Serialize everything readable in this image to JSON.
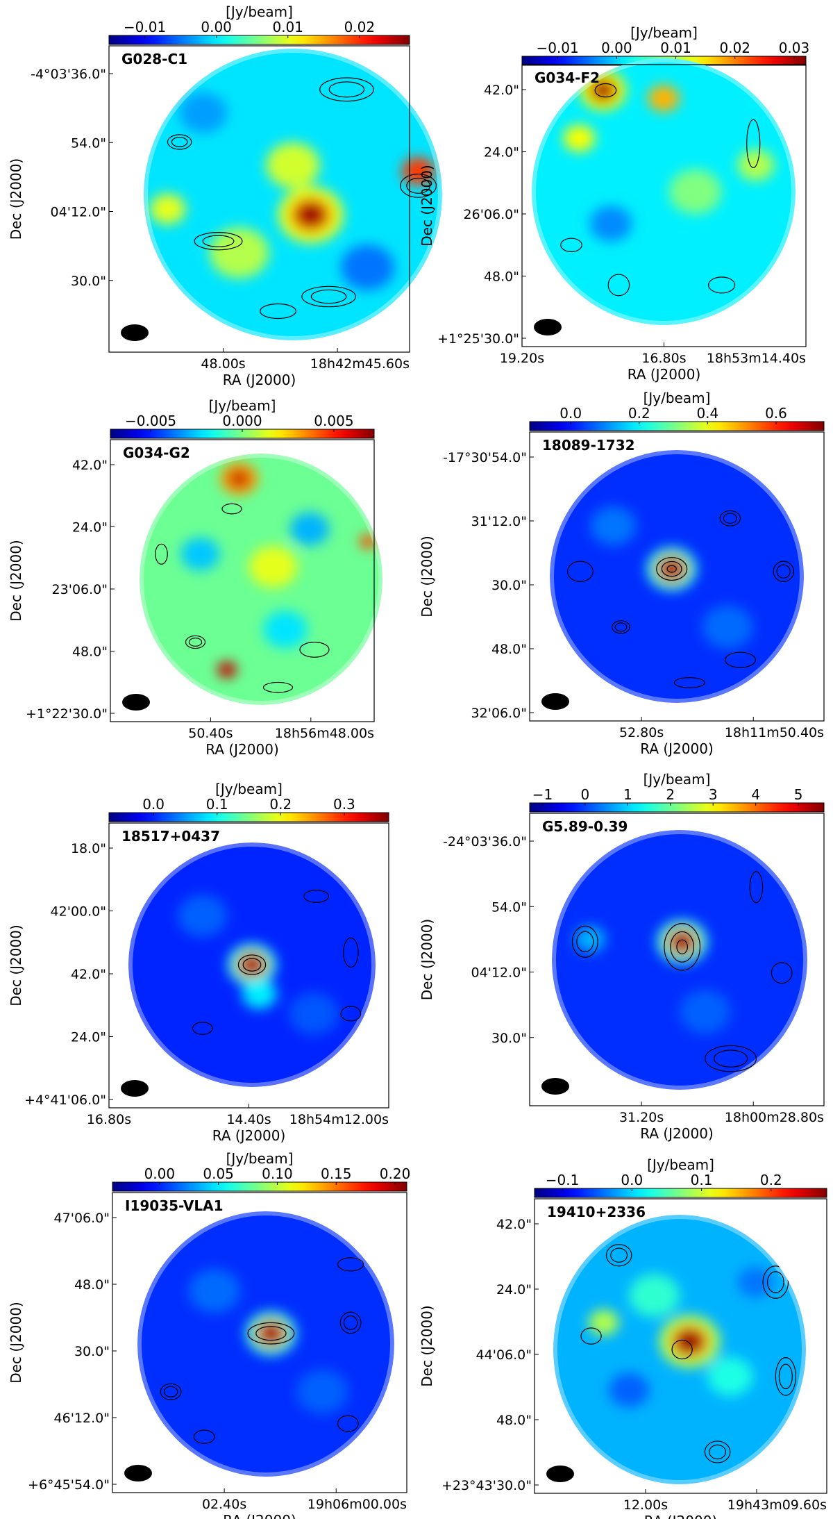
{
  "figure": {
    "colorbar_label": "[Jy/beam]",
    "xlabel": "RA (J2000)",
    "ylabel": "Dec (J2000)",
    "colormap": "jet"
  },
  "chart_data": [
    {
      "type": "heatmap",
      "title": "G028-C1",
      "colorbar": {
        "ticks": [
          "−0.01",
          "0.00",
          "0.01",
          "0.02"
        ],
        "range": [
          -0.015,
          0.027
        ]
      },
      "xticks": [
        "48.00s",
        "18h42m45.60s"
      ],
      "yticks": [
        "-4°03'36.0\"",
        "54.0\"",
        "04'12.0\"",
        "30.0\""
      ],
      "background_level": 0.35,
      "peaks": [
        {
          "u": 0.56,
          "v": 0.57,
          "r": 0.05,
          "level": 0.97,
          "role": "source"
        },
        {
          "u": 0.92,
          "v": 0.42,
          "r": 0.055,
          "level": 0.82
        },
        {
          "u": 0.5,
          "v": 0.4,
          "r": 0.09,
          "level": 0.58
        },
        {
          "u": 0.32,
          "v": 0.7,
          "r": 0.1,
          "level": 0.55
        },
        {
          "u": 0.2,
          "v": 0.22,
          "r": 0.08,
          "level": 0.28
        },
        {
          "u": 0.75,
          "v": 0.75,
          "r": 0.09,
          "level": 0.24
        },
        {
          "u": 0.08,
          "v": 0.55,
          "r": 0.06,
          "level": 0.6
        }
      ],
      "contours": [
        {
          "u": 0.68,
          "v": 0.14,
          "rx": 0.09,
          "ry": 0.04,
          "rings": 2
        },
        {
          "u": 0.12,
          "v": 0.32,
          "rx": 0.04,
          "ry": 0.025,
          "rings": 2
        },
        {
          "u": 0.92,
          "v": 0.47,
          "rx": 0.06,
          "ry": 0.04,
          "rings": 2
        },
        {
          "u": 0.25,
          "v": 0.66,
          "rx": 0.08,
          "ry": 0.03,
          "rings": 2
        },
        {
          "u": 0.62,
          "v": 0.85,
          "rx": 0.09,
          "ry": 0.035,
          "rings": 2
        },
        {
          "u": 0.45,
          "v": 0.9,
          "rx": 0.06,
          "ry": 0.025,
          "rings": 1
        }
      ]
    },
    {
      "type": "heatmap",
      "title": "G034-F2",
      "colorbar": {
        "ticks": [
          "−0.01",
          "0.00",
          "0.01",
          "0.02",
          "0.03"
        ],
        "range": [
          -0.016,
          0.032
        ]
      },
      "xticks": [
        "19.20s",
        "16.80s",
        "18h53m14.40s"
      ],
      "yticks": [
        "42.0\"",
        "24.0\"",
        "26'06.0\"",
        "48.0\"",
        "+1°25'30.0\""
      ],
      "background_level": 0.36,
      "peaks": [
        {
          "u": 0.27,
          "v": 0.12,
          "r": 0.04,
          "level": 0.98,
          "role": "source"
        },
        {
          "u": 0.5,
          "v": 0.15,
          "r": 0.06,
          "level": 0.7
        },
        {
          "u": 0.18,
          "v": 0.3,
          "r": 0.06,
          "level": 0.62
        },
        {
          "u": 0.62,
          "v": 0.5,
          "r": 0.1,
          "level": 0.5
        },
        {
          "u": 0.3,
          "v": 0.62,
          "r": 0.08,
          "level": 0.26
        },
        {
          "u": 0.85,
          "v": 0.4,
          "r": 0.07,
          "level": 0.55
        }
      ],
      "contours": [
        {
          "u": 0.28,
          "v": 0.12,
          "rx": 0.04,
          "ry": 0.025,
          "rings": 1
        },
        {
          "u": 0.84,
          "v": 0.32,
          "rx": 0.025,
          "ry": 0.09,
          "rings": 1
        },
        {
          "u": 0.33,
          "v": 0.85,
          "rx": 0.04,
          "ry": 0.04,
          "rings": 1
        },
        {
          "u": 0.72,
          "v": 0.85,
          "rx": 0.05,
          "ry": 0.03,
          "rings": 1
        },
        {
          "u": 0.15,
          "v": 0.7,
          "rx": 0.04,
          "ry": 0.025,
          "rings": 1
        }
      ]
    },
    {
      "type": "heatmap",
      "title": "G034-G2",
      "colorbar": {
        "ticks": [
          "−0.005",
          "0.000",
          "0.005"
        ],
        "range": [
          -0.0072,
          0.0072
        ]
      },
      "xticks": [
        "50.40s",
        "18h56m48.00s"
      ],
      "yticks": [
        "42.0\"",
        "24.0\"",
        "23'06.0\"",
        "48.0\"",
        "+1°22'30.0\""
      ],
      "background_level": 0.48,
      "peaks": [
        {
          "u": 0.41,
          "v": 0.1,
          "r": 0.035,
          "level": 0.96,
          "role": "source"
        },
        {
          "u": 0.36,
          "v": 0.86,
          "r": 0.04,
          "level": 0.93
        },
        {
          "u": 0.94,
          "v": 0.35,
          "r": 0.035,
          "level": 0.8
        },
        {
          "u": 0.55,
          "v": 0.45,
          "r": 0.1,
          "level": 0.6
        },
        {
          "u": 0.25,
          "v": 0.4,
          "r": 0.08,
          "level": 0.32
        },
        {
          "u": 0.7,
          "v": 0.3,
          "r": 0.08,
          "level": 0.3
        },
        {
          "u": 0.6,
          "v": 0.7,
          "r": 0.09,
          "level": 0.35
        }
      ],
      "contours": [
        {
          "u": 0.38,
          "v": 0.22,
          "rx": 0.04,
          "ry": 0.02,
          "rings": 1
        },
        {
          "u": 0.23,
          "v": 0.75,
          "rx": 0.04,
          "ry": 0.025,
          "rings": 2
        },
        {
          "u": 0.72,
          "v": 0.78,
          "rx": 0.06,
          "ry": 0.03,
          "rings": 1
        },
        {
          "u": 0.09,
          "v": 0.4,
          "rx": 0.025,
          "ry": 0.04,
          "rings": 1
        },
        {
          "u": 0.57,
          "v": 0.93,
          "rx": 0.06,
          "ry": 0.02,
          "rings": 1
        }
      ]
    },
    {
      "type": "heatmap",
      "title": "18089-1732",
      "colorbar": {
        "ticks": [
          "0.0",
          "0.2",
          "0.4",
          "0.6"
        ],
        "range": [
          -0.12,
          0.74
        ]
      },
      "xticks": [
        "52.80s",
        "18h11m50.40s"
      ],
      "yticks": [
        "-17°30'54.0\"",
        "31'12.0\"",
        "30.0\"",
        "48.0\"",
        "32'06.0\""
      ],
      "background_level": 0.17,
      "peaks": [
        {
          "u": 0.48,
          "v": 0.47,
          "r": 0.045,
          "level": 0.98,
          "role": "source"
        },
        {
          "u": 0.25,
          "v": 0.3,
          "r": 0.09,
          "level": 0.24
        },
        {
          "u": 0.7,
          "v": 0.7,
          "r": 0.1,
          "level": 0.23
        }
      ],
      "contours": [
        {
          "u": 0.48,
          "v": 0.47,
          "rx": 0.06,
          "ry": 0.045,
          "rings": 3
        },
        {
          "u": 0.71,
          "v": 0.27,
          "rx": 0.04,
          "ry": 0.03,
          "rings": 2
        },
        {
          "u": 0.92,
          "v": 0.48,
          "rx": 0.04,
          "ry": 0.04,
          "rings": 2
        },
        {
          "u": 0.12,
          "v": 0.48,
          "rx": 0.05,
          "ry": 0.04,
          "rings": 1
        },
        {
          "u": 0.28,
          "v": 0.7,
          "rx": 0.035,
          "ry": 0.025,
          "rings": 2
        },
        {
          "u": 0.75,
          "v": 0.83,
          "rx": 0.06,
          "ry": 0.03,
          "rings": 1
        },
        {
          "u": 0.55,
          "v": 0.92,
          "rx": 0.06,
          "ry": 0.02,
          "rings": 1
        }
      ]
    },
    {
      "type": "heatmap",
      "title": "18517+0437",
      "colorbar": {
        "ticks": [
          "0.0",
          "0.1",
          "0.2",
          "0.3"
        ],
        "range": [
          -0.07,
          0.37
        ]
      },
      "xticks": [
        "16.80s",
        "14.40s",
        "18h54m12.00s"
      ],
      "yticks": [
        "18.0\"",
        "42'00.0\"",
        "42.0\"",
        "24.0\"",
        "+4°41'06.0\""
      ],
      "background_level": 0.16,
      "peaks": [
        {
          "u": 0.5,
          "v": 0.5,
          "r": 0.045,
          "level": 0.98,
          "role": "source"
        },
        {
          "u": 0.53,
          "v": 0.62,
          "r": 0.07,
          "level": 0.36
        },
        {
          "u": 0.3,
          "v": 0.3,
          "r": 0.1,
          "level": 0.22
        },
        {
          "u": 0.75,
          "v": 0.7,
          "r": 0.1,
          "level": 0.21
        }
      ],
      "contours": [
        {
          "u": 0.5,
          "v": 0.5,
          "rx": 0.055,
          "ry": 0.04,
          "rings": 2
        },
        {
          "u": 0.76,
          "v": 0.22,
          "rx": 0.05,
          "ry": 0.025,
          "rings": 1
        },
        {
          "u": 0.9,
          "v": 0.45,
          "rx": 0.03,
          "ry": 0.06,
          "rings": 1
        },
        {
          "u": 0.3,
          "v": 0.76,
          "rx": 0.04,
          "ry": 0.025,
          "rings": 1
        },
        {
          "u": 0.9,
          "v": 0.7,
          "rx": 0.04,
          "ry": 0.03,
          "rings": 1
        }
      ]
    },
    {
      "type": "heatmap",
      "title": "G5.89-0.39",
      "colorbar": {
        "ticks": [
          "−1",
          "0",
          "1",
          "2",
          "3",
          "4",
          "5"
        ],
        "range": [
          -1.3,
          5.6
        ]
      },
      "xticks": [
        "31.20s",
        "18h00m28.80s"
      ],
      "yticks": [
        "-24°03'36.0\"",
        "54.0\"",
        "04'12.0\"",
        "30.0\""
      ],
      "background_level": 0.17,
      "peaks": [
        {
          "u": 0.51,
          "v": 0.43,
          "r": 0.045,
          "level": 0.98,
          "role": "source"
        },
        {
          "u": 0.15,
          "v": 0.42,
          "r": 0.06,
          "level": 0.3
        },
        {
          "u": 0.6,
          "v": 0.7,
          "r": 0.1,
          "level": 0.22
        }
      ],
      "contours": [
        {
          "u": 0.51,
          "v": 0.45,
          "rx": 0.07,
          "ry": 0.09,
          "rings": 3
        },
        {
          "u": 0.13,
          "v": 0.43,
          "rx": 0.05,
          "ry": 0.06,
          "rings": 2
        },
        {
          "u": 0.7,
          "v": 0.88,
          "rx": 0.1,
          "ry": 0.05,
          "rings": 2
        },
        {
          "u": 0.8,
          "v": 0.22,
          "rx": 0.025,
          "ry": 0.06,
          "rings": 1
        },
        {
          "u": 0.9,
          "v": 0.55,
          "rx": 0.04,
          "ry": 0.04,
          "rings": 1
        }
      ]
    },
    {
      "type": "heatmap",
      "title": "I19035-VLA1",
      "colorbar": {
        "ticks": [
          "0.00",
          "0.05",
          "0.10",
          "0.15",
          "0.20"
        ],
        "range": [
          -0.04,
          0.21
        ]
      },
      "xticks": [
        "02.40s",
        "19h06m00.00s"
      ],
      "yticks": [
        "47'06.0\"",
        "48.0\"",
        "30.0\"",
        "46'12.0\"",
        "+6°45'54.0\""
      ],
      "background_level": 0.17,
      "peaks": [
        {
          "u": 0.52,
          "v": 0.46,
          "r": 0.045,
          "level": 0.98,
          "role": "source"
        },
        {
          "u": 0.3,
          "v": 0.3,
          "r": 0.1,
          "level": 0.23
        },
        {
          "u": 0.72,
          "v": 0.68,
          "r": 0.1,
          "level": 0.22
        }
      ],
      "contours": [
        {
          "u": 0.52,
          "v": 0.46,
          "rx": 0.09,
          "ry": 0.04,
          "rings": 2
        },
        {
          "u": 0.83,
          "v": 0.42,
          "rx": 0.04,
          "ry": 0.04,
          "rings": 2
        },
        {
          "u": 0.13,
          "v": 0.68,
          "rx": 0.04,
          "ry": 0.03,
          "rings": 2
        },
        {
          "u": 0.82,
          "v": 0.8,
          "rx": 0.04,
          "ry": 0.03,
          "rings": 1
        },
        {
          "u": 0.26,
          "v": 0.85,
          "rx": 0.04,
          "ry": 0.025,
          "rings": 1
        },
        {
          "u": 0.83,
          "v": 0.2,
          "rx": 0.05,
          "ry": 0.025,
          "rings": 1
        }
      ]
    },
    {
      "type": "heatmap",
      "title": "19410+2336",
      "colorbar": {
        "ticks": [
          "−0.1",
          "0.0",
          "0.1",
          "0.2"
        ],
        "range": [
          -0.14,
          0.28
        ]
      },
      "xticks": [
        "12.00s",
        "19h43m09.60s"
      ],
      "yticks": [
        "42.0\"",
        "24.0\"",
        "44'06.0\"",
        "48.0\"",
        "+23°43'30.0\""
      ],
      "background_level": 0.3,
      "peaks": [
        {
          "u": 0.54,
          "v": 0.47,
          "r": 0.055,
          "level": 0.98,
          "role": "source"
        },
        {
          "u": 0.4,
          "v": 0.3,
          "r": 0.1,
          "level": 0.42
        },
        {
          "u": 0.7,
          "v": 0.6,
          "r": 0.09,
          "level": 0.4
        },
        {
          "u": 0.3,
          "v": 0.65,
          "r": 0.08,
          "level": 0.22
        },
        {
          "u": 0.8,
          "v": 0.25,
          "r": 0.07,
          "level": 0.24
        },
        {
          "u": 0.2,
          "v": 0.4,
          "r": 0.06,
          "level": 0.55
        }
      ],
      "contours": [
        {
          "u": 0.51,
          "v": 0.5,
          "rx": 0.04,
          "ry": 0.035,
          "rings": 1
        },
        {
          "u": 0.26,
          "v": 0.15,
          "rx": 0.05,
          "ry": 0.04,
          "rings": 2
        },
        {
          "u": 0.88,
          "v": 0.25,
          "rx": 0.05,
          "ry": 0.06,
          "rings": 2
        },
        {
          "u": 0.15,
          "v": 0.45,
          "rx": 0.04,
          "ry": 0.03,
          "rings": 1
        },
        {
          "u": 0.92,
          "v": 0.6,
          "rx": 0.04,
          "ry": 0.07,
          "rings": 2
        },
        {
          "u": 0.65,
          "v": 0.88,
          "rx": 0.05,
          "ry": 0.04,
          "rings": 2
        }
      ]
    }
  ]
}
